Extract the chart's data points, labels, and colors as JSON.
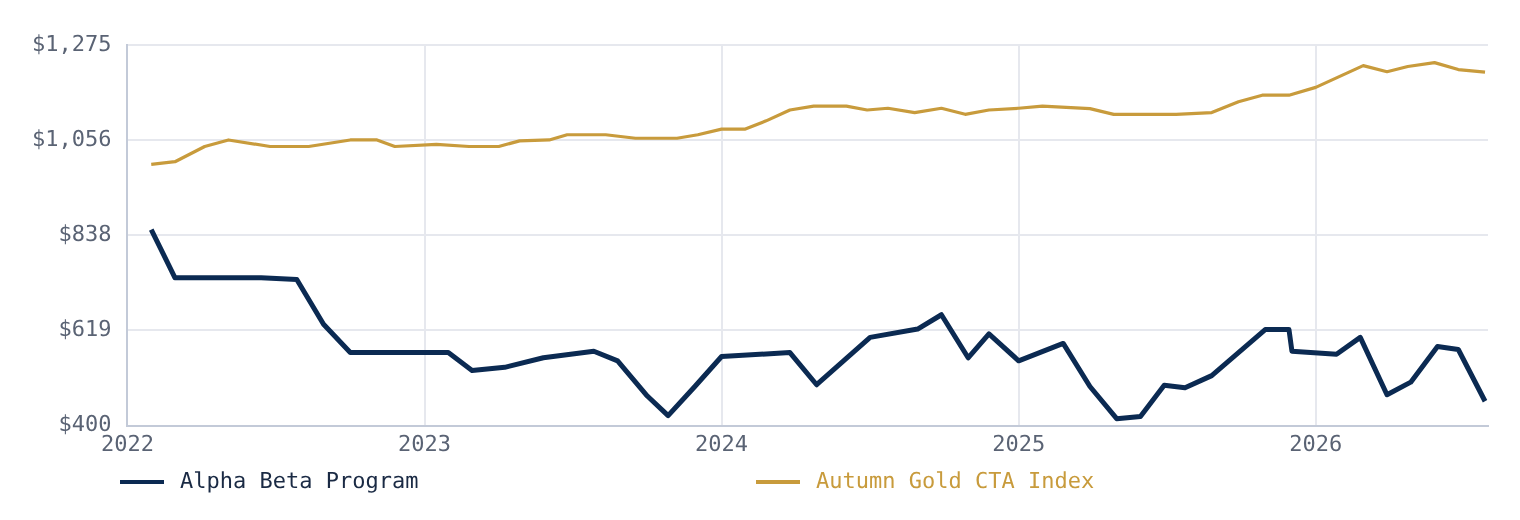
{
  "chart_data": {
    "type": "line",
    "xlim": [
      2022,
      2026.58
    ],
    "xticks": [
      2022,
      2023,
      2024,
      2025,
      2026
    ],
    "ylim": [
      400,
      1275
    ],
    "yticks": [
      {
        "value": 400,
        "label": "$400"
      },
      {
        "value": 619,
        "label": "$619"
      },
      {
        "value": 838,
        "label": "$838"
      },
      {
        "value": 1056,
        "label": "$1,056"
      },
      {
        "value": 1275,
        "label": "$1,275"
      }
    ],
    "grid": true,
    "legend": "bottom",
    "marker": "none",
    "line_style": "solid",
    "series": [
      {
        "name": "Alpha Beta Program",
        "color": "#0b2a52",
        "x": [
          2022.08,
          2022.16,
          2022.45,
          2022.57,
          2022.66,
          2022.75,
          2023.08,
          2023.16,
          2023.27,
          2023.4,
          2023.57,
          2023.65,
          2023.75,
          2023.82,
          2023.91,
          2024.0,
          2024.23,
          2024.32,
          2024.5,
          2024.66,
          2024.74,
          2024.83,
          2024.9,
          2025.0,
          2025.15,
          2025.24,
          2025.33,
          2025.41,
          2025.49,
          2025.56,
          2025.65,
          2025.83,
          2025.91,
          2025.92,
          2026.07,
          2026.15,
          2026.24,
          2026.32,
          2026.41,
          2026.48,
          2026.57
        ],
        "values": [
          851,
          740,
          740,
          736,
          633,
          568,
          568,
          527,
          534,
          556,
          571,
          549,
          468,
          423,
          490,
          559,
          568,
          494,
          603,
          622,
          655,
          556,
          611,
          549,
          589,
          490,
          416,
          421,
          493,
          487,
          515,
          621,
          621,
          571,
          564,
          603,
          471,
          500,
          582,
          575,
          456
        ]
      },
      {
        "name": "Autumn Gold CTA Index",
        "color": "#c89b3c",
        "x": [
          2022.08,
          2022.16,
          2022.26,
          2022.34,
          2022.48,
          2022.61,
          2022.75,
          2022.84,
          2022.9,
          2023.04,
          2023.15,
          2023.25,
          2023.32,
          2023.42,
          2023.48,
          2023.61,
          2023.71,
          2023.85,
          2023.92,
          2024.0,
          2024.08,
          2024.15,
          2024.23,
          2024.31,
          2024.42,
          2024.49,
          2024.56,
          2024.65,
          2024.74,
          2024.82,
          2024.9,
          2025.0,
          2025.08,
          2025.24,
          2025.32,
          2025.53,
          2025.65,
          2025.74,
          2025.82,
          2025.91,
          2026.0,
          2026.16,
          2026.24,
          2026.31,
          2026.4,
          2026.48,
          2026.57
        ],
        "values": [
          1001,
          1007,
          1042,
          1057,
          1042,
          1042,
          1057,
          1057,
          1042,
          1047,
          1042,
          1042,
          1055,
          1057,
          1069,
          1069,
          1061,
          1061,
          1069,
          1082,
          1082,
          1101,
          1126,
          1135,
          1135,
          1126,
          1130,
          1120,
          1130,
          1116,
          1126,
          1130,
          1135,
          1129,
          1116,
          1116,
          1120,
          1145,
          1160,
          1160,
          1178,
          1228,
          1214,
          1226,
          1235,
          1219,
          1213
        ]
      }
    ]
  }
}
